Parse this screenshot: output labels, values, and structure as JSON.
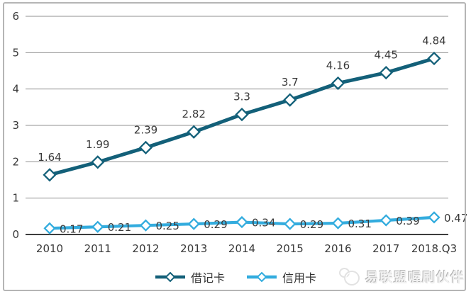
{
  "chart_data": {
    "type": "line",
    "title": "",
    "xlabel": "",
    "ylabel": "",
    "categories": [
      "2010",
      "2011",
      "2012",
      "2013",
      "2014",
      "2015",
      "2016",
      "2017",
      "2018.Q3"
    ],
    "series": [
      {
        "key": "debit-card",
        "name": "借记卡",
        "color": "#136079",
        "values": [
          1.64,
          1.99,
          2.39,
          2.82,
          3.3,
          3.7,
          4.16,
          4.45,
          4.84
        ],
        "labels": [
          "1.64",
          "1.99",
          "2.39",
          "2.82",
          "3.3",
          "3.7",
          "4.16",
          "4.45",
          "4.84"
        ],
        "label_position": "above",
        "marker": "diamond"
      },
      {
        "key": "credit-card",
        "name": "信用卡",
        "color": "#33ACDE",
        "values": [
          0.17,
          0.21,
          0.25,
          0.29,
          0.34,
          0.29,
          0.31,
          0.39,
          0.47
        ],
        "labels": [
          "0.17",
          "0.21",
          "0.25",
          "0.29",
          "0.34",
          "0.29",
          "0.31",
          "0.39",
          "0.47"
        ],
        "label_position": "right",
        "marker": "diamond"
      }
    ],
    "ylim": [
      0,
      6
    ],
    "yticks": [
      0,
      1,
      2,
      3,
      4,
      5,
      6
    ],
    "grid": true,
    "legend_position": "bottom"
  },
  "legend": {
    "items": [
      {
        "key": "debit-card",
        "label": "借记卡",
        "color": "#136079"
      },
      {
        "key": "credit-card",
        "label": "信用卡",
        "color": "#33ACDE"
      }
    ]
  },
  "watermark": {
    "text": "易联盟喔刷伙伴",
    "icon": "camera-doodle-icon"
  },
  "colors": {
    "grid": "#909090",
    "axis": "#3c3c3c",
    "tick_label": "#3a3a3a",
    "data_label": "#3a3a3a",
    "background": "#ffffff",
    "border": "#b5b5b5"
  }
}
